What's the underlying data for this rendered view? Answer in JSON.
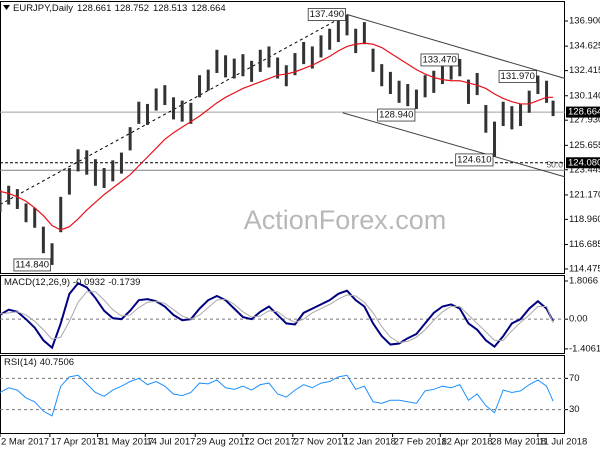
{
  "chart_data": [
    {
      "type": "ohlc",
      "title": "EURJPY,Daily",
      "last_bar": {
        "open": 128.661,
        "high": 128.752,
        "low": 128.513,
        "close": 128.664
      },
      "x": [
        "2017-03-02",
        "2017-03-10",
        "2017-03-18",
        "2017-03-26",
        "2017-04-03",
        "2017-04-11",
        "2017-04-19",
        "2017-04-27",
        "2017-05-05",
        "2017-05-13",
        "2017-05-21",
        "2017-05-29",
        "2017-06-06",
        "2017-06-14",
        "2017-06-22",
        "2017-06-30",
        "2017-07-08",
        "2017-07-16",
        "2017-07-24",
        "2017-08-01",
        "2017-08-09",
        "2017-08-17",
        "2017-08-25",
        "2017-09-02",
        "2017-09-10",
        "2017-09-18",
        "2017-09-26",
        "2017-10-04",
        "2017-10-12",
        "2017-10-20",
        "2017-10-28",
        "2017-11-05",
        "2017-11-13",
        "2017-11-21",
        "2017-11-29",
        "2017-12-07",
        "2017-12-15",
        "2017-12-23",
        "2017-12-31",
        "2018-01-08",
        "2018-01-16",
        "2018-01-24",
        "2018-02-01",
        "2018-02-09",
        "2018-02-17",
        "2018-02-25",
        "2018-03-05",
        "2018-03-13",
        "2018-03-21",
        "2018-03-29",
        "2018-04-06",
        "2018-04-14",
        "2018-04-22",
        "2018-04-30",
        "2018-05-08",
        "2018-05-16",
        "2018-05-24",
        "2018-06-01",
        "2018-06-09",
        "2018-06-17",
        "2018-06-25",
        "2018-07-03",
        "2018-07-11",
        "2018-07-19",
        "2018-07-25"
      ],
      "xlim": [
        "2017-03-02",
        "2018-08-05"
      ],
      "high": [
        121.6,
        122.0,
        121.7,
        120.4,
        120.0,
        118.3,
        116.8,
        121.0,
        123.6,
        125.3,
        125.2,
        124.4,
        123.6,
        124.3,
        125.0,
        127.3,
        129.6,
        129.4,
        130.8,
        131.1,
        130.0,
        129.7,
        129.5,
        132.0,
        132.5,
        134.3,
        133.8,
        133.5,
        133.9,
        133.3,
        134.3,
        134.6,
        133.6,
        132.9,
        134.0,
        135.0,
        134.6,
        135.6,
        136.2,
        137.1,
        137.49,
        136.2,
        136.8,
        134.4,
        133.0,
        132.3,
        131.5,
        131.2,
        130.7,
        132.0,
        132.4,
        133.2,
        133.4,
        133.47,
        131.6,
        132.2,
        129.3,
        127.8,
        129.6,
        129.2,
        129.4,
        130.6,
        131.97,
        131.5,
        129.7
      ],
      "low": [
        119.6,
        120.3,
        119.9,
        118.7,
        118.2,
        115.9,
        114.84,
        117.8,
        121.2,
        123.3,
        123.0,
        122.0,
        121.8,
        122.4,
        123.1,
        125.2,
        127.6,
        127.5,
        128.8,
        129.3,
        128.0,
        127.8,
        127.6,
        130.0,
        130.6,
        132.2,
        131.8,
        131.7,
        131.9,
        131.4,
        132.3,
        132.7,
        131.7,
        131.0,
        132.0,
        133.0,
        132.6,
        133.6,
        134.3,
        135.0,
        135.6,
        134.0,
        134.8,
        132.3,
        131.0,
        130.3,
        129.5,
        129.2,
        128.94,
        130.0,
        130.4,
        131.2,
        131.6,
        131.9,
        129.4,
        130.2,
        126.8,
        124.61,
        127.4,
        127.1,
        127.4,
        128.6,
        130.3,
        129.5,
        128.3
      ],
      "ma": [
        121.5,
        121.3,
        121.0,
        120.6,
        120.0,
        119.3,
        118.4,
        118.0,
        118.3,
        119.0,
        119.8,
        120.5,
        121.2,
        121.8,
        122.4,
        123.0,
        123.8,
        124.6,
        125.4,
        126.2,
        126.8,
        127.3,
        127.8,
        128.3,
        128.9,
        129.5,
        130.0,
        130.4,
        130.8,
        131.1,
        131.4,
        131.7,
        132.0,
        132.1,
        132.3,
        132.6,
        132.9,
        133.3,
        133.7,
        134.2,
        134.6,
        134.8,
        134.9,
        134.8,
        134.5,
        134.0,
        133.5,
        133.0,
        132.5,
        132.1,
        131.8,
        131.6,
        131.5,
        131.5,
        131.3,
        131.1,
        130.8,
        130.3,
        129.9,
        129.6,
        129.4,
        129.4,
        129.7,
        130.0,
        130.0
      ],
      "bar_color": "#333333",
      "ma_color": "#e8101a",
      "ylim": [
        114.11,
        138.71
      ],
      "yticks": [
        114.475,
        116.685,
        {
          "value": 118.96,
          "label": "118.960"
        },
        {
          "value": 121.17,
          "label": "121.170"
        },
        123.445,
        125.655,
        {
          "value": 127.93,
          "label": "127.930"
        },
        {
          "value": 130.14,
          "label": "130.140"
        },
        132.415,
        134.625,
        {
          "value": 136.9,
          "label": "136.900"
        }
      ],
      "trend_lines": [
        {
          "x": [
            "2017-03-02",
            "2018-01-16"
          ],
          "y": [
            120.3,
            137.49
          ],
          "color": "#000000",
          "dashed": true
        },
        {
          "x": [
            "2018-01-16",
            "2018-08-05"
          ],
          "y": [
            137.49,
            131.7
          ],
          "color": "#404040",
          "dashed": false
        },
        {
          "x": [
            "2018-01-12",
            "2018-08-05"
          ],
          "y": [
            128.6,
            122.8
          ],
          "color": "#404040",
          "dashed": false
        }
      ],
      "levels": [
        {
          "value": 124.08,
          "label": "124.080"
        }
      ],
      "fib": {
        "value": 123.4,
        "label": "50.0"
      },
      "annotations": [
        {
          "label": "114.840",
          "x": "2017-04-19",
          "y": 114.84
        },
        {
          "label": "137.490",
          "x": "2018-01-16",
          "y": 137.49
        },
        {
          "label": "128.940",
          "x": "2018-03-21",
          "y": 128.94
        },
        {
          "label": "133.470",
          "x": "2018-04-30",
          "y": 133.47
        },
        {
          "label": "124.610",
          "x": "2018-06-01",
          "y": 124.61
        },
        {
          "label": "131.970",
          "x": "2018-07-11",
          "y": 131.97
        }
      ],
      "watermark": "ActionForex.com"
    },
    {
      "type": "line",
      "title": "MACD(12,26,9)",
      "ylim": [
        -1.6,
        2.09
      ],
      "yticks": [
        1.8066,
        {
          "value": 0,
          "label": "0.00"
        },
        -1.4061
      ],
      "zero_line": true,
      "series": [
        {
          "color": "#000080",
          "values": [
            0.2,
            0.45,
            0.35,
            0.0,
            -0.4,
            -1.0,
            -1.35,
            -0.2,
            1.2,
            1.7,
            1.5,
            1.0,
            0.4,
            0.05,
            0.0,
            0.4,
            0.9,
            0.95,
            0.85,
            0.6,
            0.2,
            -0.05,
            0.0,
            0.5,
            0.9,
            1.1,
            0.9,
            0.5,
            0.1,
            0.0,
            0.35,
            0.6,
            0.2,
            -0.2,
            -0.25,
            0.3,
            0.5,
            0.7,
            0.9,
            1.2,
            1.35,
            0.9,
            0.6,
            -0.2,
            -0.8,
            -1.2,
            -1.15,
            -0.9,
            -0.7,
            -0.2,
            0.3,
            0.6,
            0.7,
            0.5,
            -0.2,
            -0.5,
            -1.0,
            -1.3,
            -0.8,
            -0.2,
            0.0,
            0.5,
            0.85,
            0.5,
            -0.0932
          ]
        },
        {
          "color": "#a9a9a9",
          "values": [
            0.25,
            0.3,
            0.35,
            0.2,
            -0.1,
            -0.5,
            -0.95,
            -0.85,
            -0.1,
            0.8,
            1.3,
            1.3,
            0.9,
            0.45,
            0.15,
            0.2,
            0.55,
            0.8,
            0.85,
            0.75,
            0.45,
            0.15,
            0.0,
            0.2,
            0.55,
            0.9,
            0.95,
            0.7,
            0.35,
            0.1,
            0.15,
            0.4,
            0.35,
            0.05,
            -0.15,
            0.0,
            0.3,
            0.5,
            0.7,
            0.95,
            1.15,
            1.1,
            0.8,
            0.3,
            -0.35,
            -0.85,
            -1.1,
            -1.05,
            -0.85,
            -0.5,
            -0.05,
            0.35,
            0.6,
            0.6,
            0.2,
            -0.2,
            -0.6,
            -1.0,
            -1.0,
            -0.55,
            -0.15,
            0.2,
            0.6,
            0.6,
            -0.1739
          ]
        }
      ]
    },
    {
      "type": "line",
      "title": "RSI(14)",
      "ylim": [
        0,
        100
      ],
      "yticks": [
        70,
        30
      ],
      "tick_lines": true,
      "series": [
        {
          "color": "#1e90ff",
          "values": [
            52,
            58,
            55,
            45,
            40,
            28,
            22,
            60,
            72,
            74,
            63,
            52,
            47,
            55,
            60,
            66,
            70,
            62,
            66,
            60,
            50,
            48,
            52,
            64,
            63,
            68,
            58,
            56,
            60,
            55,
            62,
            64,
            50,
            46,
            55,
            62,
            58,
            64,
            66,
            72,
            74,
            56,
            60,
            40,
            38,
            42,
            42,
            40,
            38,
            54,
            56,
            60,
            58,
            62,
            42,
            50,
            35,
            26,
            55,
            52,
            54,
            62,
            68,
            60,
            40.7506
          ]
        }
      ],
      "xticks": [
        {
          "value": "2017-03-02",
          "label": "2 Mar 2017"
        },
        {
          "value": "2017-04-17",
          "label": "17 Apr 2017"
        },
        {
          "value": "2017-05-31",
          "label": "31 May 2017"
        },
        {
          "value": "2017-07-14",
          "label": "14 Jul 2017"
        },
        {
          "value": "2017-08-29",
          "label": "29 Aug 2017"
        },
        {
          "value": "2017-10-12",
          "label": "12 Oct 2017"
        },
        {
          "value": "2017-11-27",
          "label": "27 Nov 2017"
        },
        {
          "value": "2018-01-12",
          "label": "12 Jan 2018"
        },
        {
          "value": "2018-02-27",
          "label": "27 Feb 2018"
        },
        {
          "value": "2018-04-12",
          "label": "12 Apr 2018"
        },
        {
          "value": "2018-05-28",
          "label": "28 May 2018"
        },
        {
          "value": "2018-07-11",
          "label": "11 Jul 2018"
        }
      ]
    }
  ]
}
